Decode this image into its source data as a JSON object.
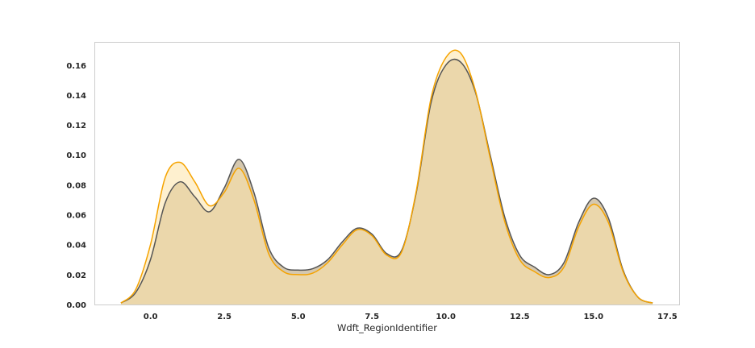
{
  "chart_data": {
    "type": "area",
    "title": "",
    "xlabel": "Wdft_RegionIdentifier",
    "ylabel": "",
    "xlim": [
      -1.9,
      17.9
    ],
    "ylim": [
      0,
      0.1755
    ],
    "grid": false,
    "legend": "none",
    "x_ticks": [
      0.0,
      2.5,
      5.0,
      7.5,
      10.0,
      12.5,
      15.0,
      17.5
    ],
    "x_tick_labels": [
      "0.0",
      "2.5",
      "5.0",
      "7.5",
      "10.0",
      "12.5",
      "15.0",
      "17.5"
    ],
    "y_ticks": [
      0.0,
      0.02,
      0.04,
      0.06,
      0.08,
      0.1,
      0.12,
      0.14,
      0.16
    ],
    "y_tick_labels": [
      "0.00",
      "0.02",
      "0.04",
      "0.06",
      "0.08",
      "0.10",
      "0.12",
      "0.14",
      "0.16"
    ],
    "series": [
      {
        "color": "#555555",
        "fill": "#b39a6e",
        "x": [
          -1.0,
          -0.5,
          0.0,
          0.5,
          1.0,
          1.5,
          2.0,
          2.5,
          3.0,
          3.5,
          4.0,
          4.5,
          5.0,
          5.5,
          6.0,
          6.5,
          7.0,
          7.5,
          8.0,
          8.5,
          9.0,
          9.5,
          10.0,
          10.5,
          11.0,
          11.5,
          12.0,
          12.5,
          13.0,
          13.5,
          14.0,
          14.5,
          15.0,
          15.5,
          16.0,
          16.5,
          17.0
        ],
        "y": [
          0.001,
          0.008,
          0.03,
          0.068,
          0.082,
          0.072,
          0.062,
          0.078,
          0.097,
          0.075,
          0.038,
          0.025,
          0.023,
          0.024,
          0.03,
          0.042,
          0.051,
          0.047,
          0.034,
          0.036,
          0.075,
          0.135,
          0.16,
          0.162,
          0.142,
          0.1,
          0.058,
          0.033,
          0.025,
          0.02,
          0.028,
          0.055,
          0.071,
          0.058,
          0.023,
          0.005,
          0.001
        ]
      },
      {
        "color": "#f5a300",
        "fill": "#fde3a8",
        "x": [
          -1.0,
          -0.5,
          0.0,
          0.5,
          1.0,
          1.5,
          2.0,
          2.5,
          3.0,
          3.5,
          4.0,
          4.5,
          5.0,
          5.5,
          6.0,
          6.5,
          7.0,
          7.5,
          8.0,
          8.5,
          9.0,
          9.5,
          10.0,
          10.5,
          11.0,
          11.5,
          12.0,
          12.5,
          13.0,
          13.5,
          14.0,
          14.5,
          15.0,
          15.5,
          16.0,
          16.5,
          17.0
        ],
        "y": [
          0.001,
          0.01,
          0.04,
          0.085,
          0.095,
          0.082,
          0.066,
          0.075,
          0.091,
          0.07,
          0.034,
          0.022,
          0.02,
          0.021,
          0.028,
          0.04,
          0.05,
          0.046,
          0.033,
          0.035,
          0.076,
          0.138,
          0.165,
          0.168,
          0.143,
          0.098,
          0.055,
          0.03,
          0.022,
          0.018,
          0.025,
          0.052,
          0.067,
          0.055,
          0.022,
          0.005,
          0.001
        ]
      }
    ]
  }
}
